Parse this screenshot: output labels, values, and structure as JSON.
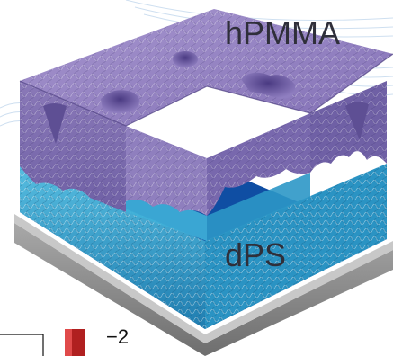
{
  "labels": {
    "top_layer": "hPMMA",
    "bottom_layer": "dPS",
    "scale_tick": "−2"
  },
  "colors": {
    "hpmma_film": "#8a79b8",
    "hpmma_top": "#9b8ac6",
    "hpmma_dark": "#5e4f94",
    "dps_layer": "#3aa6cf",
    "dps_dark": "#1d6e9a",
    "substrate_top": "#0f4ea3",
    "substrate_side": "#8f8f8f",
    "background_lines": "#c9dcef",
    "scale_marker": "#b02020"
  }
}
